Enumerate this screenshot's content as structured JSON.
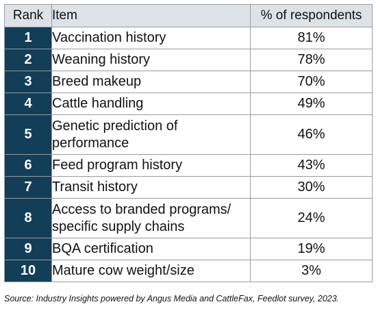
{
  "chart_data": {
    "type": "table",
    "columns": [
      "Rank",
      "Item",
      "% of respondents"
    ],
    "rows": [
      {
        "rank": "1",
        "item": "Vaccination history",
        "percent": "81%"
      },
      {
        "rank": "2",
        "item": "Weaning history",
        "percent": "78%"
      },
      {
        "rank": "3",
        "item": "Breed makeup",
        "percent": "70%"
      },
      {
        "rank": "4",
        "item": "Cattle handling",
        "percent": "49%"
      },
      {
        "rank": "5",
        "item": "Genetic prediction of performance",
        "percent": "46%"
      },
      {
        "rank": "6",
        "item": "Feed program history",
        "percent": "43%"
      },
      {
        "rank": "7",
        "item": "Transit history",
        "percent": "30%"
      },
      {
        "rank": "8",
        "item": "Access to branded programs/ specific supply chains",
        "percent": "24%"
      },
      {
        "rank": "9",
        "item": "BQA certification",
        "percent": "19%"
      },
      {
        "rank": "10",
        "item": "Mature cow weight/size",
        "percent": "3%"
      }
    ],
    "source": "Source: Industry Insights powered by Angus Media and CattleFax, Feedlot survey, 2023."
  },
  "colors": {
    "header_bg": "#dde2e6",
    "rank_bg": "#123e58",
    "rank_text": "#ffffff",
    "border": "#9a9a9a"
  }
}
